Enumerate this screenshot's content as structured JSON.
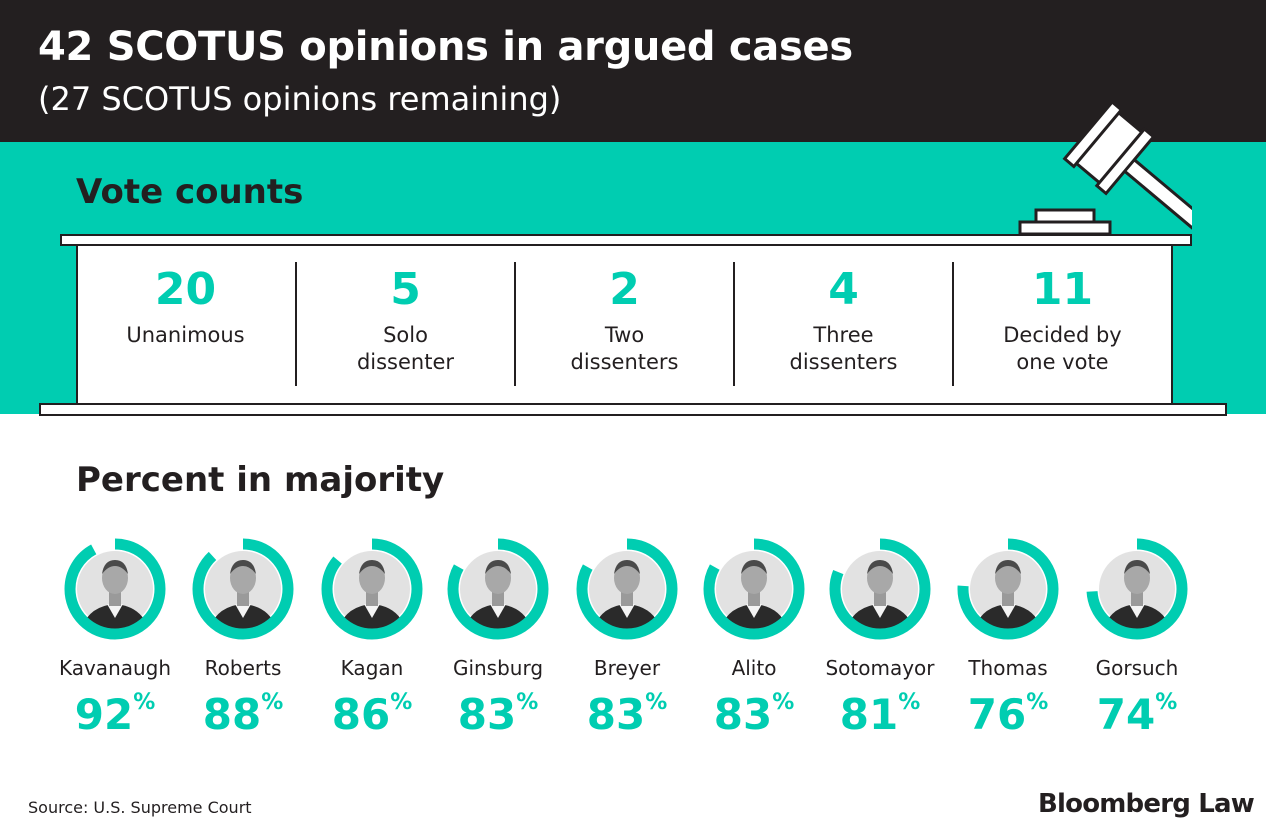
{
  "header": {
    "title": "42 SCOTUS opinions in argued cases",
    "subtitle": "(27 SCOTUS opinions remaining)"
  },
  "vote_counts": {
    "heading": "Vote counts",
    "items": [
      {
        "value": "20",
        "label": "Unanimous"
      },
      {
        "value": "5",
        "label": "Solo\ndissenter"
      },
      {
        "value": "2",
        "label": "Two\ndissenters"
      },
      {
        "value": "4",
        "label": "Three\ndissenters"
      },
      {
        "value": "11",
        "label": "Decided by\none vote"
      }
    ]
  },
  "majority": {
    "heading": "Percent in majority",
    "justices": [
      {
        "name": "Kavanaugh",
        "percent": 92
      },
      {
        "name": "Roberts",
        "percent": 88
      },
      {
        "name": "Kagan",
        "percent": 86
      },
      {
        "name": "Ginsburg",
        "percent": 83
      },
      {
        "name": "Breyer",
        "percent": 83
      },
      {
        "name": "Alito",
        "percent": 83
      },
      {
        "name": "Sotomayor",
        "percent": 81
      },
      {
        "name": "Thomas",
        "percent": 76
      },
      {
        "name": "Gorsuch",
        "percent": 74
      }
    ],
    "percent_symbol": "%"
  },
  "chart_data": [
    {
      "type": "table",
      "title": "Vote counts",
      "categories": [
        "Unanimous",
        "Solo dissenter",
        "Two dissenters",
        "Three dissenters",
        "Decided by one vote"
      ],
      "values": [
        20,
        5,
        2,
        4,
        11
      ]
    },
    {
      "type": "pie",
      "title": "Percent in majority",
      "categories": [
        "Kavanaugh",
        "Roberts",
        "Kagan",
        "Ginsburg",
        "Breyer",
        "Alito",
        "Sotomayor",
        "Thomas",
        "Gorsuch"
      ],
      "values": [
        92,
        88,
        86,
        83,
        83,
        83,
        81,
        76,
        74
      ]
    }
  ],
  "footer": {
    "source": "Source: U.S. Supreme Court",
    "logo": "Bloomberg Law"
  },
  "colors": {
    "accent": "#00cdb1",
    "dark": "#231f20",
    "background": "#ffffff"
  },
  "icons": [
    "gavel-icon",
    "justice-portrait"
  ]
}
